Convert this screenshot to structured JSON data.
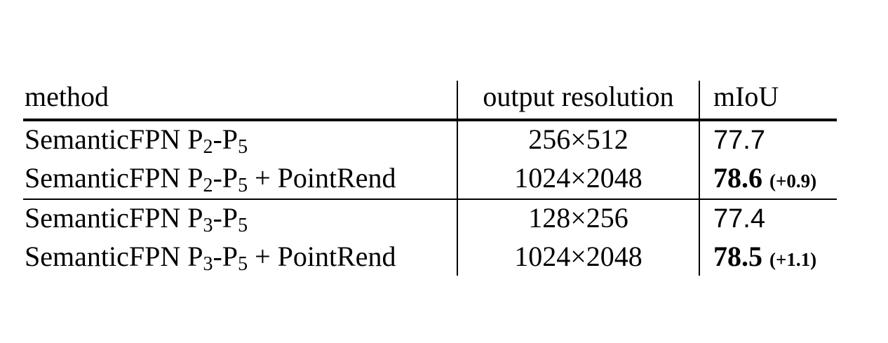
{
  "table": {
    "headers": [
      "method",
      "output resolution",
      "mIoU"
    ],
    "rows": [
      {
        "method_prefix": "SemanticFPN P",
        "sub_a": "2",
        "mid": "-P",
        "sub_b": "5",
        "suffix": "",
        "resolution": "256×512",
        "miou": "77.7",
        "gain": ""
      },
      {
        "method_prefix": "SemanticFPN P",
        "sub_a": "2",
        "mid": "-P",
        "sub_b": "5",
        "suffix": " + PointRend",
        "resolution": "1024×2048",
        "miou": "78.6",
        "gain": "(+0.9)"
      },
      {
        "method_prefix": "SemanticFPN P",
        "sub_a": "3",
        "mid": "-P",
        "sub_b": "5",
        "suffix": "",
        "resolution": "128×256",
        "miou": "77.4",
        "gain": ""
      },
      {
        "method_prefix": "SemanticFPN P",
        "sub_a": "3",
        "mid": "-P",
        "sub_b": "5",
        "suffix": " + PointRend",
        "resolution": "1024×2048",
        "miou": "78.5",
        "gain": "(+1.1)"
      }
    ]
  }
}
